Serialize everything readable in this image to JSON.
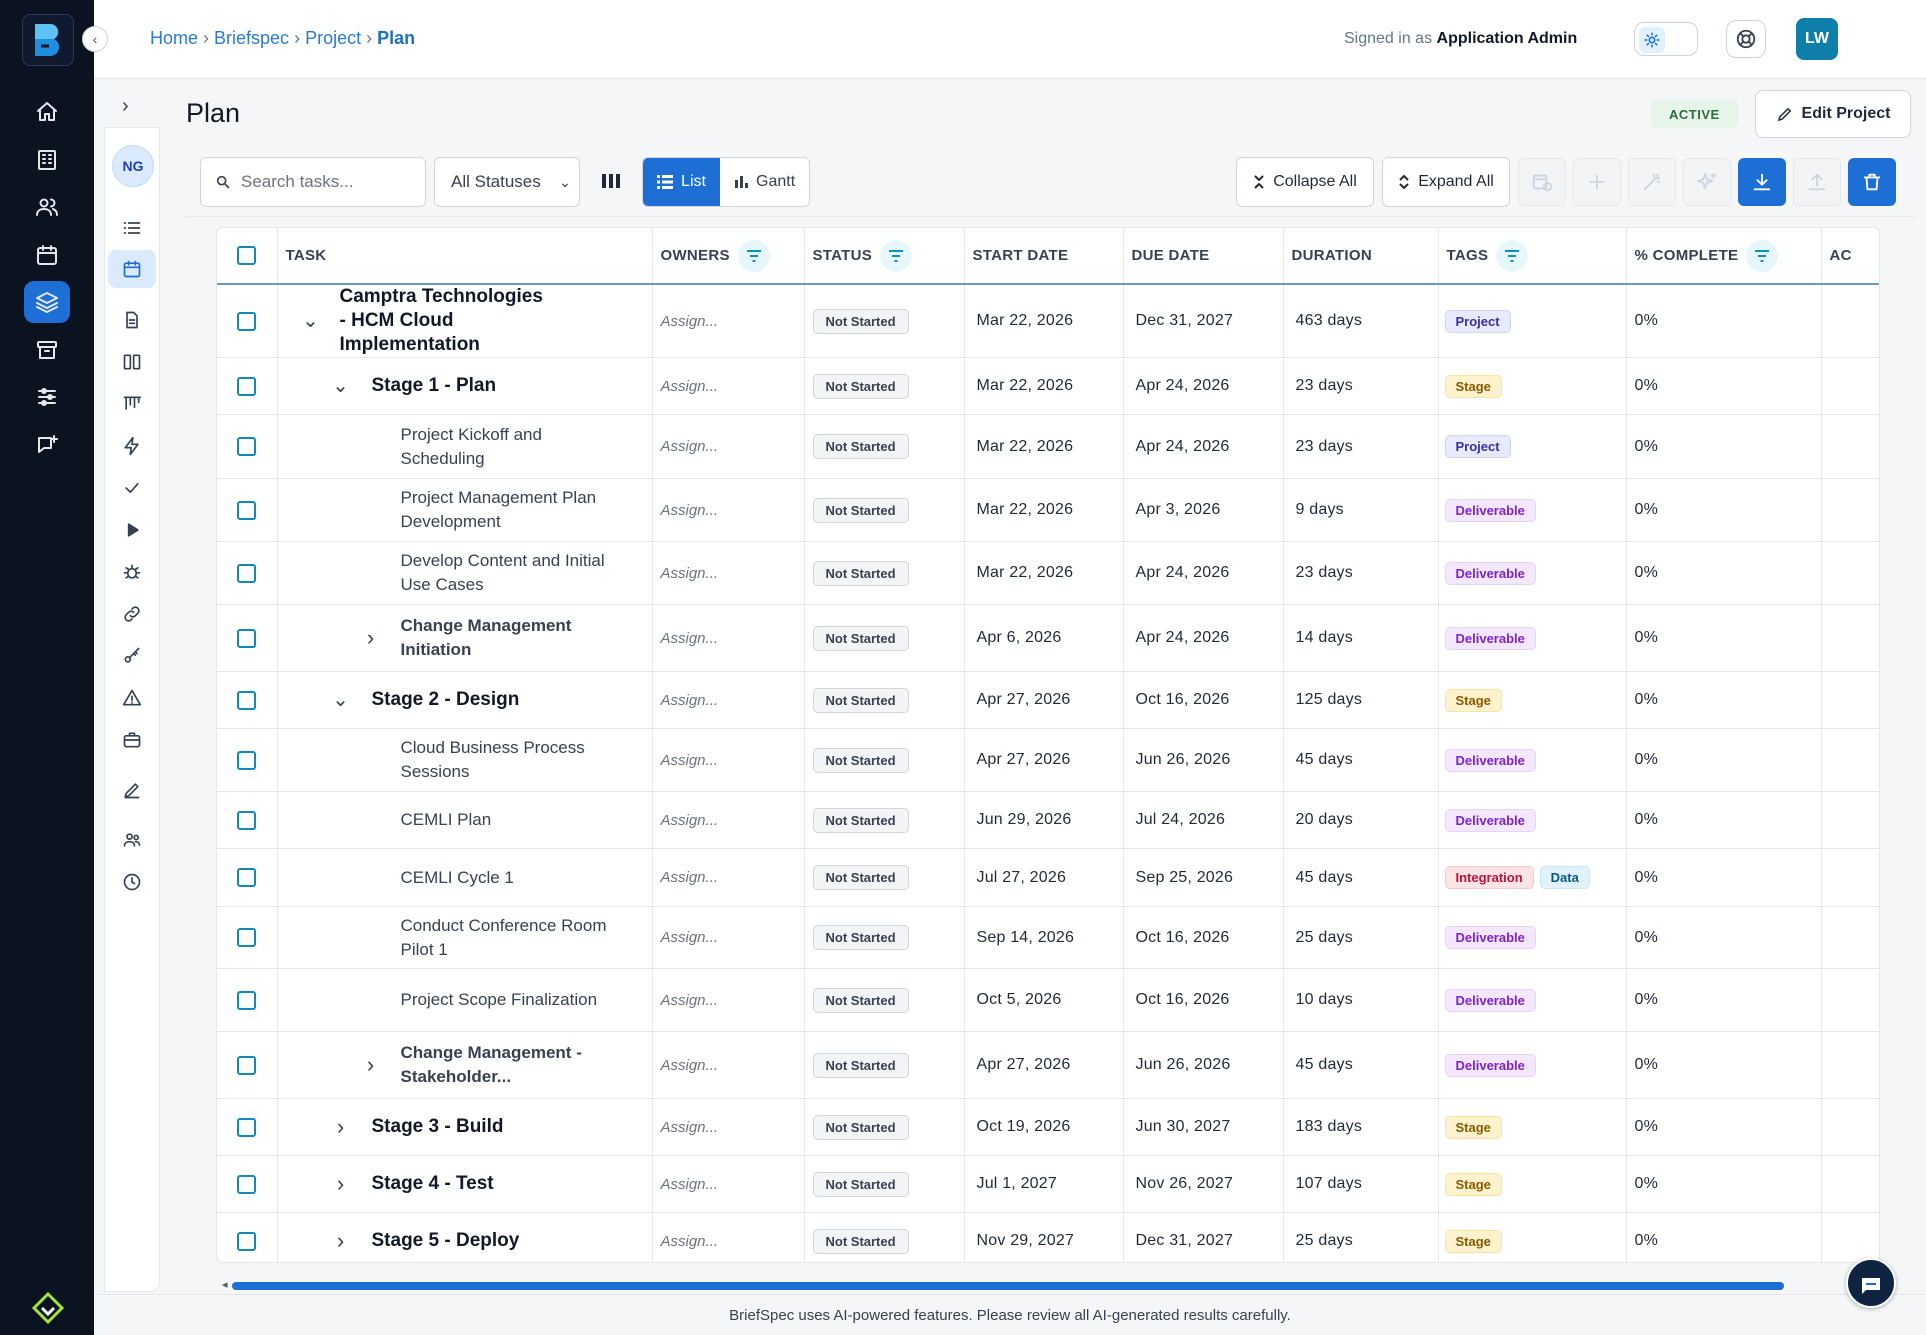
{
  "breadcrumb": [
    {
      "label": "Home"
    },
    {
      "label": "Briefspec"
    },
    {
      "label": "Project"
    },
    {
      "label": "Plan",
      "current": true
    }
  ],
  "header": {
    "signed_prefix": "Signed in as",
    "signed_user": "Application Admin",
    "avatar_initials": "LW"
  },
  "project_avatar": "NG",
  "page": {
    "title": "Plan",
    "status": "ACTIVE",
    "edit_label": "Edit Project"
  },
  "toolbar": {
    "search_placeholder": "Search tasks...",
    "status_filter": "All Statuses",
    "view_list": "List",
    "view_gantt": "Gantt",
    "collapse_all": "Collapse All",
    "expand_all": "Expand All"
  },
  "table": {
    "columns": [
      "TASK",
      "OWNERS",
      "STATUS",
      "START DATE",
      "DUE DATE",
      "DURATION",
      "TAGS",
      "% COMPLETE",
      "AC"
    ],
    "rows": [
      {
        "level": 0,
        "toggle": "down",
        "name": "Camptra Technologies - HCM Cloud Implementation",
        "owner": "Assign...",
        "status": "Not Started",
        "start": "Mar 22, 2026",
        "due": "Dec 31, 2027",
        "duration": "463 days",
        "tags": [
          {
            "label": "Project",
            "kind": "project"
          }
        ],
        "complete": "0%"
      },
      {
        "level": 1,
        "toggle": "down",
        "name": "Stage 1 - Plan",
        "owner": "Assign...",
        "status": "Not Started",
        "start": "Mar 22, 2026",
        "due": "Apr 24, 2026",
        "duration": "23 days",
        "tags": [
          {
            "label": "Stage",
            "kind": "stage"
          }
        ],
        "complete": "0%"
      },
      {
        "level": 2,
        "toggle": "",
        "name": "Project Kickoff and Scheduling",
        "owner": "Assign...",
        "status": "Not Started",
        "start": "Mar 22, 2026",
        "due": "Apr 24, 2026",
        "duration": "23 days",
        "tags": [
          {
            "label": "Project",
            "kind": "project"
          }
        ],
        "complete": "0%"
      },
      {
        "level": 2,
        "toggle": "",
        "name": "Project Management Plan Development",
        "owner": "Assign...",
        "status": "Not Started",
        "start": "Mar 22, 2026",
        "due": "Apr 3, 2026",
        "duration": "9 days",
        "tags": [
          {
            "label": "Deliverable",
            "kind": "deliverable"
          }
        ],
        "complete": "0%"
      },
      {
        "level": 2,
        "toggle": "",
        "name": "Develop Content and Initial Use Cases",
        "owner": "Assign...",
        "status": "Not Started",
        "start": "Mar 22, 2026",
        "due": "Apr 24, 2026",
        "duration": "23 days",
        "tags": [
          {
            "label": "Deliverable",
            "kind": "deliverable"
          }
        ],
        "complete": "0%"
      },
      {
        "level": 2,
        "toggle": "right",
        "bold": true,
        "name": "Change Management Initiation",
        "owner": "Assign...",
        "status": "Not Started",
        "start": "Apr 6, 2026",
        "due": "Apr 24, 2026",
        "duration": "14 days",
        "tags": [
          {
            "label": "Deliverable",
            "kind": "deliverable"
          }
        ],
        "complete": "0%"
      },
      {
        "level": 1,
        "toggle": "down",
        "name": "Stage 2 - Design",
        "owner": "Assign...",
        "status": "Not Started",
        "start": "Apr 27, 2026",
        "due": "Oct 16, 2026",
        "duration": "125 days",
        "tags": [
          {
            "label": "Stage",
            "kind": "stage"
          }
        ],
        "complete": "0%"
      },
      {
        "level": 2,
        "toggle": "",
        "name": "Cloud Business Process Sessions",
        "owner": "Assign...",
        "status": "Not Started",
        "start": "Apr 27, 2026",
        "due": "Jun 26, 2026",
        "duration": "45 days",
        "tags": [
          {
            "label": "Deliverable",
            "kind": "deliverable"
          }
        ],
        "complete": "0%"
      },
      {
        "level": 2,
        "toggle": "",
        "name": "CEMLI Plan",
        "owner": "Assign...",
        "status": "Not Started",
        "start": "Jun 29, 2026",
        "due": "Jul 24, 2026",
        "duration": "20 days",
        "tags": [
          {
            "label": "Deliverable",
            "kind": "deliverable"
          }
        ],
        "complete": "0%"
      },
      {
        "level": 2,
        "toggle": "",
        "name": "CEMLI Cycle 1",
        "owner": "Assign...",
        "status": "Not Started",
        "start": "Jul 27, 2026",
        "due": "Sep 25, 2026",
        "duration": "45 days",
        "tags": [
          {
            "label": "Integration",
            "kind": "integration"
          },
          {
            "label": "Data",
            "kind": "data"
          }
        ],
        "complete": "0%"
      },
      {
        "level": 2,
        "toggle": "",
        "name": "Conduct Conference Room Pilot 1",
        "owner": "Assign...",
        "status": "Not Started",
        "start": "Sep 14, 2026",
        "due": "Oct 16, 2026",
        "duration": "25 days",
        "tags": [
          {
            "label": "Deliverable",
            "kind": "deliverable"
          }
        ],
        "complete": "0%"
      },
      {
        "level": 2,
        "toggle": "",
        "name": "Project Scope Finalization",
        "owner": "Assign...",
        "status": "Not Started",
        "start": "Oct 5, 2026",
        "due": "Oct 16, 2026",
        "duration": "10 days",
        "tags": [
          {
            "label": "Deliverable",
            "kind": "deliverable"
          }
        ],
        "complete": "0%"
      },
      {
        "level": 2,
        "toggle": "right",
        "bold": true,
        "name": "Change Management - Stakeholder...",
        "owner": "Assign...",
        "status": "Not Started",
        "start": "Apr 27, 2026",
        "due": "Jun 26, 2026",
        "duration": "45 days",
        "tags": [
          {
            "label": "Deliverable",
            "kind": "deliverable"
          }
        ],
        "complete": "0%"
      },
      {
        "level": 1,
        "toggle": "right",
        "name": "Stage 3 - Build",
        "owner": "Assign...",
        "status": "Not Started",
        "start": "Oct 19, 2026",
        "due": "Jun 30, 2027",
        "duration": "183 days",
        "tags": [
          {
            "label": "Stage",
            "kind": "stage"
          }
        ],
        "complete": "0%"
      },
      {
        "level": 1,
        "toggle": "right",
        "name": "Stage 4 - Test",
        "owner": "Assign...",
        "status": "Not Started",
        "start": "Jul 1, 2027",
        "due": "Nov 26, 2027",
        "duration": "107 days",
        "tags": [
          {
            "label": "Stage",
            "kind": "stage"
          }
        ],
        "complete": "0%"
      },
      {
        "level": 1,
        "toggle": "right",
        "name": "Stage 5 - Deploy",
        "owner": "Assign...",
        "status": "Not Started",
        "start": "Nov 29, 2027",
        "due": "Dec 31, 2027",
        "duration": "25 days",
        "tags": [
          {
            "label": "Stage",
            "kind": "stage"
          }
        ],
        "complete": "0%"
      }
    ]
  },
  "footer": {
    "disclaimer": "BriefSpec uses AI-powered features. Please review all AI-generated results carefully."
  },
  "colors": {
    "accent": "#1d6fd6",
    "rail": "#0b1220",
    "active_pill": "#e6f4ea"
  }
}
